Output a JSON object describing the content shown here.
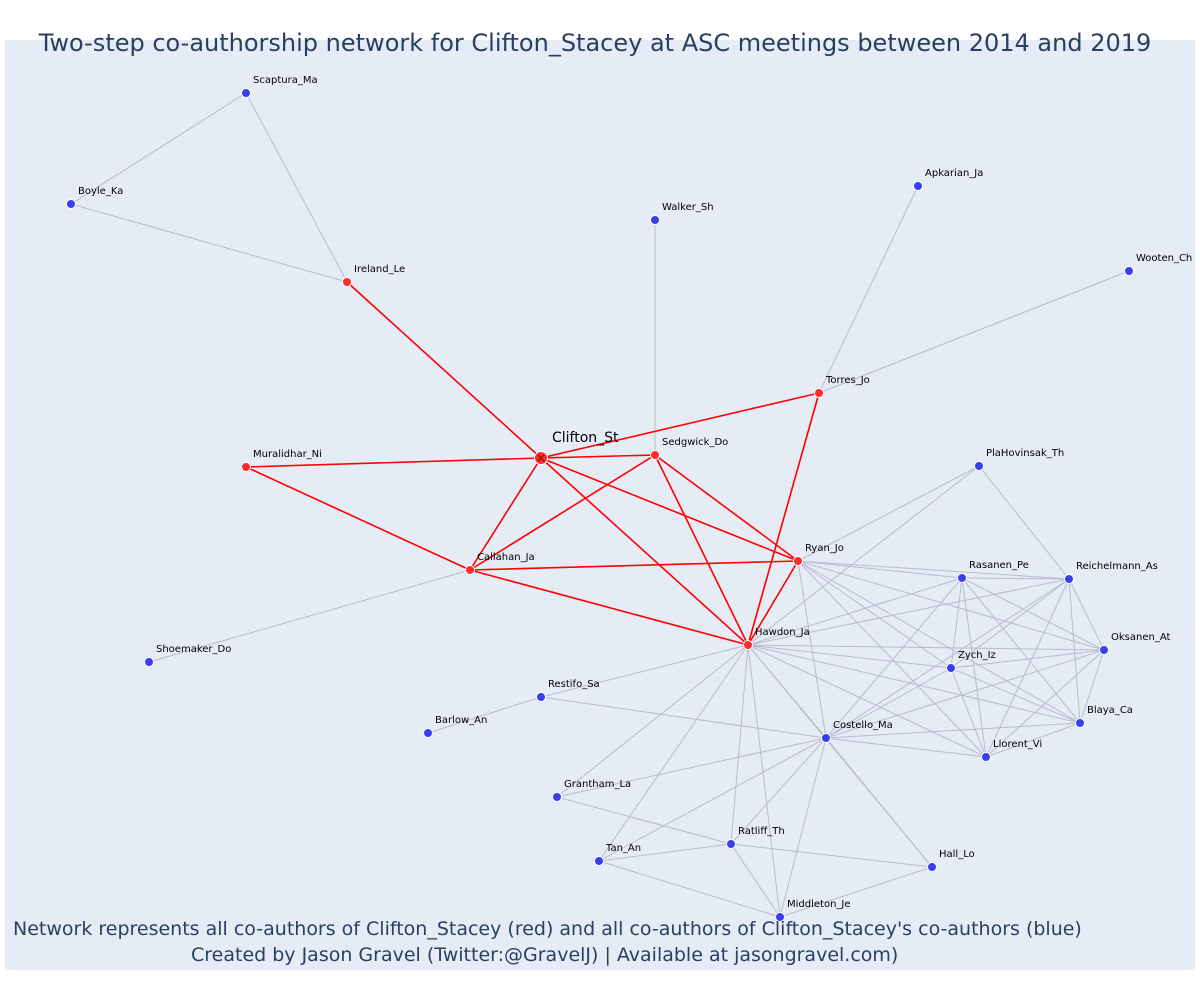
{
  "title": "Two-step co-authorship network for Clifton_Stacey at ASC meetings between 2014 and 2019",
  "footer": {
    "line1": "Network represents all co-authors of Clifton_Stacey (red) and all co-authors of Clifton_Stacey's co-authors (blue)",
    "line2": "Created by Jason Gravel (Twitter:@GravelJ) | Available at jasongravel.com)"
  },
  "colors": {
    "background": "#e5ecf6",
    "primary_edge": "#ff0000",
    "secondary_edge": "#b8bccb",
    "coauthor_node": "#ff2a2a",
    "second_step_node": "#3c3cf0",
    "text": "#2a3f5f"
  },
  "nodes": [
    {
      "id": "Clifton_St",
      "label": "Clifton_St",
      "group": "focal"
    },
    {
      "id": "Ireland_Le",
      "label": "Ireland_Le",
      "group": "coauthor"
    },
    {
      "id": "Muralidhar_Ni",
      "label": "Muralidhar_Ni",
      "group": "coauthor"
    },
    {
      "id": "Sedgwick_Do",
      "label": "Sedgwick_Do",
      "group": "coauthor"
    },
    {
      "id": "Torres_Jo",
      "label": "Torres_Jo",
      "group": "coauthor"
    },
    {
      "id": "Callahan_Ja",
      "label": "Callahan_Ja",
      "group": "coauthor"
    },
    {
      "id": "Ryan_Jo",
      "label": "Ryan_Jo",
      "group": "coauthor"
    },
    {
      "id": "Hawdon_Ja",
      "label": "Hawdon_Ja",
      "group": "coauthor"
    },
    {
      "id": "Scaptura_Ma",
      "label": "Scaptura_Ma",
      "group": "second"
    },
    {
      "id": "Boyle_Ka",
      "label": "Boyle_Ka",
      "group": "second"
    },
    {
      "id": "Walker_Sh",
      "label": "Walker_Sh",
      "group": "second"
    },
    {
      "id": "Apkarian_Ja",
      "label": "Apkarian_Ja",
      "group": "second"
    },
    {
      "id": "Wooten_Ch",
      "label": "Wooten_Ch",
      "group": "second"
    },
    {
      "id": "PlaHovinsak_Th",
      "label": "PlaHovinsak_Th",
      "group": "second"
    },
    {
      "id": "Rasanen_Pe",
      "label": "Rasanen_Pe",
      "group": "second"
    },
    {
      "id": "Reichelmann_As",
      "label": "Reichelmann_As",
      "group": "second"
    },
    {
      "id": "Oksanen_At",
      "label": "Oksanen_At",
      "group": "second"
    },
    {
      "id": "Zych_Iz",
      "label": "Zych_Iz",
      "group": "second"
    },
    {
      "id": "Blaya_Ca",
      "label": "Blaya_Ca",
      "group": "second"
    },
    {
      "id": "Llorent_Vi",
      "label": "Llorent_Vi",
      "group": "second"
    },
    {
      "id": "Costello_Ma",
      "label": "Costello_Ma",
      "group": "second"
    },
    {
      "id": "Restifo_Sa",
      "label": "Restifo_Sa",
      "group": "second"
    },
    {
      "id": "Barlow_An",
      "label": "Barlow_An",
      "group": "second"
    },
    {
      "id": "Shoemaker_Do",
      "label": "Shoemaker_Do",
      "group": "second"
    },
    {
      "id": "Grantham_La",
      "label": "Grantham_La",
      "group": "second"
    },
    {
      "id": "Ratliff_Th",
      "label": "Ratliff_Th",
      "group": "second"
    },
    {
      "id": "Tan_An",
      "label": "Tan_An",
      "group": "second"
    },
    {
      "id": "Hall_Lo",
      "label": "Hall_Lo",
      "group": "second"
    },
    {
      "id": "Middleton_Je",
      "label": "Middleton_Je",
      "group": "second"
    }
  ],
  "edges_primary": [
    [
      "Clifton_St",
      "Ireland_Le"
    ],
    [
      "Clifton_St",
      "Muralidhar_Ni"
    ],
    [
      "Clifton_St",
      "Sedgwick_Do"
    ],
    [
      "Clifton_St",
      "Torres_Jo"
    ],
    [
      "Clifton_St",
      "Callahan_Ja"
    ],
    [
      "Clifton_St",
      "Ryan_Jo"
    ],
    [
      "Clifton_St",
      "Hawdon_Ja"
    ],
    [
      "Muralidhar_Ni",
      "Callahan_Ja"
    ],
    [
      "Sedgwick_Do",
      "Callahan_Ja"
    ],
    [
      "Sedgwick_Do",
      "Ryan_Jo"
    ],
    [
      "Sedgwick_Do",
      "Hawdon_Ja"
    ],
    [
      "Callahan_Ja",
      "Ryan_Jo"
    ],
    [
      "Callahan_Ja",
      "Hawdon_Ja"
    ],
    [
      "Ryan_Jo",
      "Hawdon_Ja"
    ],
    [
      "Torres_Jo",
      "Hawdon_Ja"
    ]
  ],
  "edges_secondary": [
    [
      "Ireland_Le",
      "Scaptura_Ma"
    ],
    [
      "Ireland_Le",
      "Boyle_Ka"
    ],
    [
      "Scaptura_Ma",
      "Boyle_Ka"
    ],
    [
      "Sedgwick_Do",
      "Walker_Sh"
    ],
    [
      "Torres_Jo",
      "Apkarian_Ja"
    ],
    [
      "Torres_Jo",
      "Wooten_Ch"
    ],
    [
      "Callahan_Ja",
      "Shoemaker_Do"
    ],
    [
      "Restifo_Sa",
      "Barlow_An"
    ],
    [
      "Hawdon_Ja",
      "PlaHovinsak_Th"
    ],
    [
      "Hawdon_Ja",
      "Rasanen_Pe"
    ],
    [
      "Hawdon_Ja",
      "Reichelmann_As"
    ],
    [
      "Hawdon_Ja",
      "Oksanen_At"
    ],
    [
      "Hawdon_Ja",
      "Zych_Iz"
    ],
    [
      "Hawdon_Ja",
      "Blaya_Ca"
    ],
    [
      "Hawdon_Ja",
      "Llorent_Vi"
    ],
    [
      "Hawdon_Ja",
      "Costello_Ma"
    ],
    [
      "Hawdon_Ja",
      "Restifo_Sa"
    ],
    [
      "Hawdon_Ja",
      "Grantham_La"
    ],
    [
      "Hawdon_Ja",
      "Ratliff_Th"
    ],
    [
      "Hawdon_Ja",
      "Tan_An"
    ],
    [
      "Hawdon_Ja",
      "Hall_Lo"
    ],
    [
      "Hawdon_Ja",
      "Middleton_Je"
    ],
    [
      "Ryan_Jo",
      "PlaHovinsak_Th"
    ],
    [
      "Ryan_Jo",
      "Rasanen_Pe"
    ],
    [
      "Ryan_Jo",
      "Reichelmann_As"
    ],
    [
      "Ryan_Jo",
      "Oksanen_At"
    ],
    [
      "Ryan_Jo",
      "Zych_Iz"
    ],
    [
      "Ryan_Jo",
      "Blaya_Ca"
    ],
    [
      "Ryan_Jo",
      "Llorent_Vi"
    ],
    [
      "Ryan_Jo",
      "Costello_Ma"
    ],
    [
      "PlaHovinsak_Th",
      "Reichelmann_As"
    ],
    [
      "Rasanen_Pe",
      "Reichelmann_As"
    ],
    [
      "Rasanen_Pe",
      "Oksanen_At"
    ],
    [
      "Rasanen_Pe",
      "Zych_Iz"
    ],
    [
      "Rasanen_Pe",
      "Blaya_Ca"
    ],
    [
      "Rasanen_Pe",
      "Llorent_Vi"
    ],
    [
      "Rasanen_Pe",
      "Costello_Ma"
    ],
    [
      "Reichelmann_As",
      "Oksanen_At"
    ],
    [
      "Reichelmann_As",
      "Zych_Iz"
    ],
    [
      "Reichelmann_As",
      "Blaya_Ca"
    ],
    [
      "Reichelmann_As",
      "Llorent_Vi"
    ],
    [
      "Reichelmann_As",
      "Costello_Ma"
    ],
    [
      "Oksanen_At",
      "Zych_Iz"
    ],
    [
      "Oksanen_At",
      "Blaya_Ca"
    ],
    [
      "Oksanen_At",
      "Llorent_Vi"
    ],
    [
      "Oksanen_At",
      "Costello_Ma"
    ],
    [
      "Zych_Iz",
      "Blaya_Ca"
    ],
    [
      "Zych_Iz",
      "Llorent_Vi"
    ],
    [
      "Zych_Iz",
      "Costello_Ma"
    ],
    [
      "Blaya_Ca",
      "Llorent_Vi"
    ],
    [
      "Blaya_Ca",
      "Costello_Ma"
    ],
    [
      "Llorent_Vi",
      "Costello_Ma"
    ],
    [
      "Restifo_Sa",
      "Costello_Ma"
    ],
    [
      "Costello_Ma",
      "Grantham_La"
    ],
    [
      "Costello_Ma",
      "Ratliff_Th"
    ],
    [
      "Costello_Ma",
      "Tan_An"
    ],
    [
      "Costello_Ma",
      "Hall_Lo"
    ],
    [
      "Costello_Ma",
      "Middleton_Je"
    ],
    [
      "Grantham_La",
      "Ratliff_Th"
    ],
    [
      "Ratliff_Th",
      "Tan_An"
    ],
    [
      "Ratliff_Th",
      "Hall_Lo"
    ],
    [
      "Ratliff_Th",
      "Middleton_Je"
    ],
    [
      "Tan_An",
      "Middleton_Je"
    ],
    [
      "Hall_Lo",
      "Middleton_Je"
    ]
  ]
}
